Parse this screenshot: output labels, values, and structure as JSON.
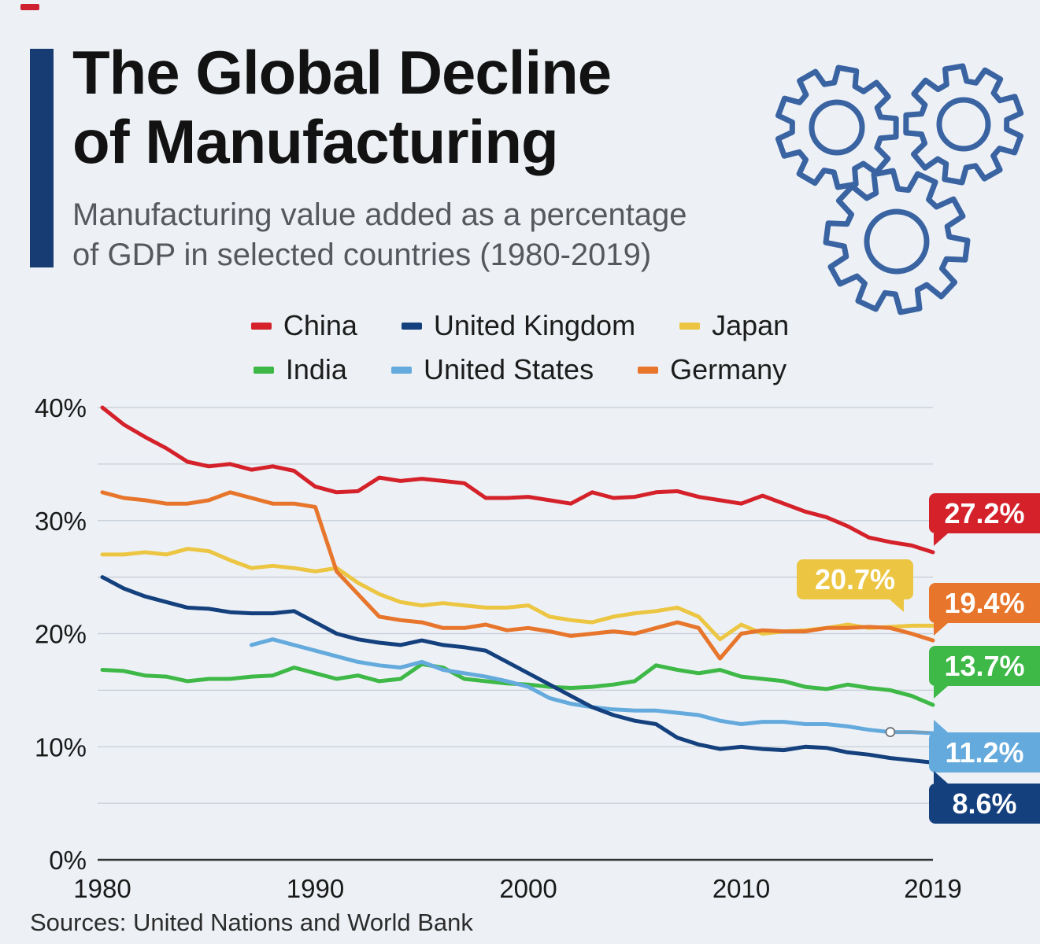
{
  "page": {
    "background": "#edf1f6",
    "accent_bar_color": "#173b73",
    "gears_color": "#3a63a2",
    "artifact_dash_color": "#cf2030"
  },
  "header": {
    "title_line1": "The Global Decline",
    "title_line2": "of Manufacturing",
    "subtitle_line1": "Manufacturing value added as a percentage",
    "subtitle_line2": "of GDP in selected countries (1980-2019)"
  },
  "footer": {
    "sources": "Sources: United Nations and World Bank"
  },
  "chart_data": {
    "type": "line",
    "title": "The Global Decline of Manufacturing",
    "subtitle": "Manufacturing value added as a percentage of GDP in selected countries (1980-2019)",
    "ylim": [
      0,
      40
    ],
    "grid": true,
    "grid_interval": 5,
    "legend_position": "top",
    "y_ticks": [
      0,
      10,
      20,
      30,
      40
    ],
    "y_tick_labels": [
      "0%",
      "10%",
      "20%",
      "30%",
      "40%"
    ],
    "x_ticks": [
      1980,
      1990,
      2000,
      2010,
      2019
    ],
    "x_tick_labels": [
      "1980",
      "1990",
      "2000",
      "2010",
      "2019"
    ],
    "years": [
      1980,
      1981,
      1982,
      1983,
      1984,
      1985,
      1986,
      1987,
      1988,
      1989,
      1990,
      1991,
      1992,
      1993,
      1994,
      1995,
      1996,
      1997,
      1998,
      1999,
      2000,
      2001,
      2002,
      2003,
      2004,
      2005,
      2006,
      2007,
      2008,
      2009,
      2010,
      2011,
      2012,
      2013,
      2014,
      2015,
      2016,
      2017,
      2018,
      2019
    ],
    "series": [
      {
        "name": "China",
        "color": "#d4212a",
        "end_label": "27.2%",
        "values": [
          40.0,
          38.5,
          37.4,
          36.4,
          35.2,
          34.8,
          35.0,
          34.5,
          34.8,
          34.4,
          33.0,
          32.5,
          32.6,
          33.8,
          33.5,
          33.7,
          33.5,
          33.3,
          32.0,
          32.0,
          32.1,
          31.8,
          31.5,
          32.5,
          32.0,
          32.1,
          32.5,
          32.6,
          32.1,
          31.8,
          31.5,
          32.2,
          31.5,
          30.8,
          30.3,
          29.5,
          28.5,
          28.1,
          27.8,
          27.2
        ]
      },
      {
        "name": "United Kingdom",
        "color": "#14407d",
        "end_label": "8.6%",
        "values": [
          25.0,
          24.0,
          23.3,
          22.8,
          22.3,
          22.2,
          21.9,
          21.8,
          21.8,
          22.0,
          21.0,
          20.0,
          19.5,
          19.2,
          19.0,
          19.4,
          19.0,
          18.8,
          18.5,
          17.5,
          16.5,
          15.5,
          14.5,
          13.5,
          12.8,
          12.3,
          12.0,
          10.8,
          10.2,
          9.8,
          10.0,
          9.8,
          9.7,
          10.0,
          9.9,
          9.5,
          9.3,
          9.0,
          8.8,
          8.6
        ]
      },
      {
        "name": "Japan",
        "color": "#ecc643",
        "end_label": "20.7%",
        "values": [
          27.0,
          27.0,
          27.2,
          27.0,
          27.5,
          27.3,
          26.5,
          25.8,
          26.0,
          25.8,
          25.5,
          25.8,
          24.5,
          23.5,
          22.8,
          22.5,
          22.7,
          22.5,
          22.3,
          22.3,
          22.5,
          21.5,
          21.2,
          21.0,
          21.5,
          21.8,
          22.0,
          22.3,
          21.5,
          19.5,
          20.8,
          20.0,
          20.2,
          20.3,
          20.5,
          20.8,
          20.5,
          20.6,
          20.7,
          20.7
        ]
      },
      {
        "name": "India",
        "color": "#3eb847",
        "end_label": "13.7%",
        "values": [
          16.8,
          16.7,
          16.3,
          16.2,
          15.8,
          16.0,
          16.0,
          16.2,
          16.3,
          17.0,
          16.5,
          16.0,
          16.3,
          15.8,
          16.0,
          17.3,
          17.0,
          16.0,
          15.8,
          15.6,
          15.5,
          15.3,
          15.2,
          15.3,
          15.5,
          15.8,
          17.2,
          16.8,
          16.5,
          16.8,
          16.2,
          16.0,
          15.8,
          15.3,
          15.1,
          15.5,
          15.2,
          15.0,
          14.5,
          13.7
        ]
      },
      {
        "name": "United States",
        "color": "#64aadd",
        "end_label": "11.2%",
        "values": [
          null,
          null,
          null,
          null,
          null,
          null,
          null,
          19.0,
          19.5,
          19.0,
          18.5,
          18.0,
          17.5,
          17.2,
          17.0,
          17.5,
          16.8,
          16.5,
          16.2,
          15.8,
          15.3,
          14.3,
          13.8,
          13.5,
          13.3,
          13.2,
          13.2,
          13.0,
          12.8,
          12.3,
          12.0,
          12.2,
          12.2,
          12.0,
          12.0,
          11.8,
          11.5,
          11.3,
          11.3,
          11.2
        ]
      },
      {
        "name": "Germany",
        "color": "#e7752b",
        "end_label": "19.4%",
        "values": [
          32.5,
          32.0,
          31.8,
          31.5,
          31.5,
          31.8,
          32.5,
          32.0,
          31.5,
          31.5,
          31.2,
          25.5,
          23.5,
          21.5,
          21.2,
          21.0,
          20.5,
          20.5,
          20.8,
          20.3,
          20.5,
          20.2,
          19.8,
          20.0,
          20.2,
          20.0,
          20.5,
          21.0,
          20.5,
          17.8,
          20.0,
          20.3,
          20.2,
          20.2,
          20.5,
          20.5,
          20.6,
          20.5,
          20.0,
          19.4
        ]
      }
    ],
    "marker": {
      "series": "United States",
      "year": 2017,
      "value": 11.3
    }
  }
}
